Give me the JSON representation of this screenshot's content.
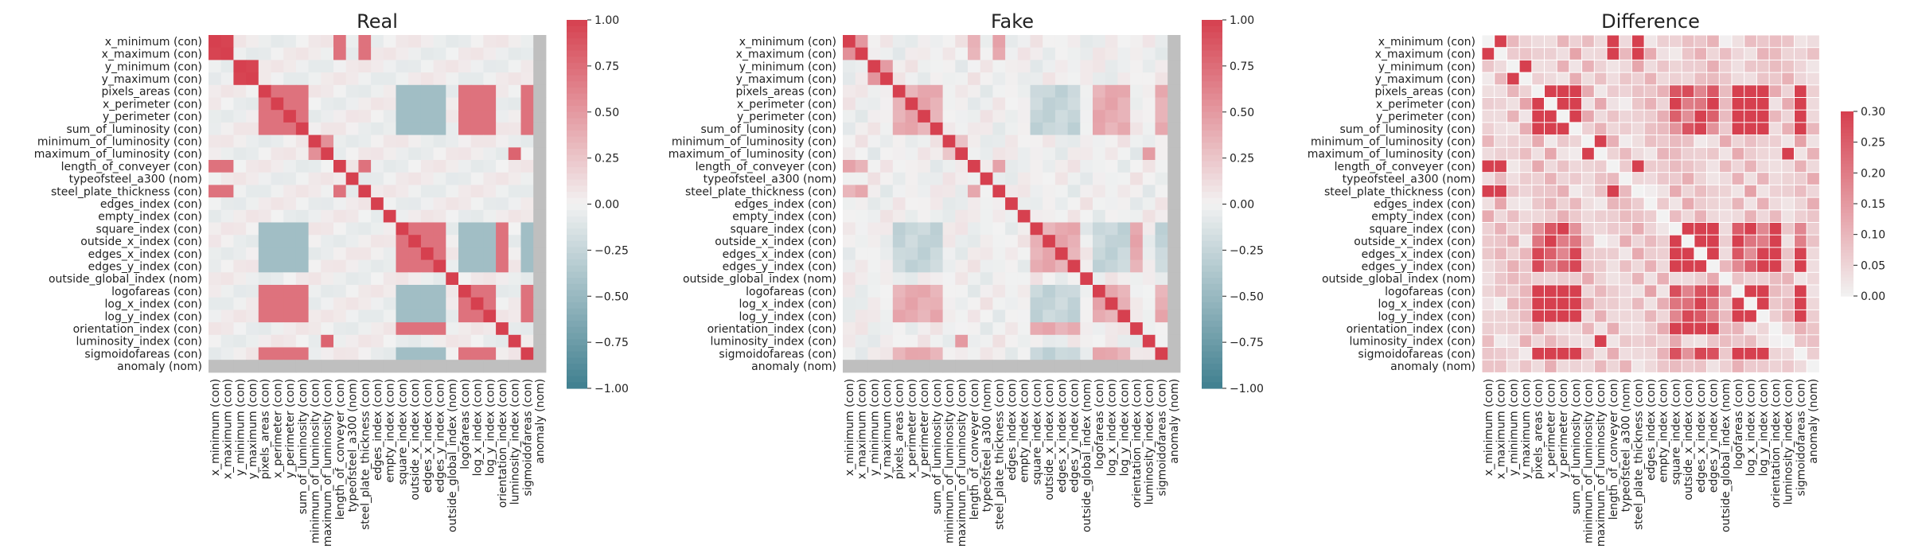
{
  "chart_data": [
    {
      "type": "heatmap",
      "title": "Real",
      "variables": [
        "x_minimum (con)",
        "x_maximum (con)",
        "y_minimum (con)",
        "y_maximum (con)",
        "pixels_areas (con)",
        "x_perimeter (con)",
        "y_perimeter (con)",
        "sum_of_luminosity (con)",
        "minimum_of_luminosity (con)",
        "maximum_of_luminosity (con)",
        "length_of_conveyer (con)",
        "typeofsteel_a300 (nom)",
        "steel_plate_thickness (con)",
        "edges_index (con)",
        "empty_index (con)",
        "square_index (con)",
        "outside_x_index (con)",
        "edges_x_index (con)",
        "edges_y_index (con)",
        "outside_global_index (nom)",
        "logofareas (con)",
        "log_x_index (con)",
        "log_y_index (con)",
        "orientation_index (con)",
        "luminosity_index (con)",
        "sigmoidofareas (con)",
        "anomaly (nom)"
      ],
      "vmin": -1,
      "vmax": 1,
      "colorbar_ticks": [
        "1.00",
        "0.75",
        "0.50",
        "0.25",
        "0.00",
        "−0.25",
        "−0.50",
        "−0.75",
        "−1.00"
      ],
      "undefined_variable": "anomaly (nom)"
    },
    {
      "type": "heatmap",
      "title": "Fake",
      "variables": [
        "x_minimum (con)",
        "x_maximum (con)",
        "y_minimum (con)",
        "y_maximum (con)",
        "pixels_areas (con)",
        "x_perimeter (con)",
        "y_perimeter (con)",
        "sum_of_luminosity (con)",
        "minimum_of_luminosity (con)",
        "maximum_of_luminosity (con)",
        "length_of_conveyer (con)",
        "typeofsteel_a300 (nom)",
        "steel_plate_thickness (con)",
        "edges_index (con)",
        "empty_index (con)",
        "square_index (con)",
        "outside_x_index (con)",
        "edges_x_index (con)",
        "edges_y_index (con)",
        "outside_global_index (nom)",
        "logofareas (con)",
        "log_x_index (con)",
        "log_y_index (con)",
        "orientation_index (con)",
        "luminosity_index (con)",
        "sigmoidofareas (con)",
        "anomaly (nom)"
      ],
      "vmin": -1,
      "vmax": 1,
      "colorbar_ticks": [
        "1.00",
        "0.75",
        "0.50",
        "0.25",
        "0.00",
        "−0.25",
        "−0.50",
        "−0.75",
        "−1.00"
      ],
      "undefined_variable": "anomaly (nom)"
    },
    {
      "type": "heatmap",
      "title": "Difference",
      "variables": [
        "x_minimum (con)",
        "x_maximum (con)",
        "y_minimum (con)",
        "y_maximum (con)",
        "pixels_areas (con)",
        "x_perimeter (con)",
        "y_perimeter (con)",
        "sum_of_luminosity (con)",
        "minimum_of_luminosity (con)",
        "maximum_of_luminosity (con)",
        "length_of_conveyer (con)",
        "typeofsteel_a300 (nom)",
        "steel_plate_thickness (con)",
        "edges_index (con)",
        "empty_index (con)",
        "square_index (con)",
        "outside_x_index (con)",
        "edges_x_index (con)",
        "edges_y_index (con)",
        "outside_global_index (nom)",
        "logofareas (con)",
        "log_x_index (con)",
        "log_y_index (con)",
        "orientation_index (con)",
        "luminosity_index (con)",
        "sigmoidofareas (con)",
        "anomaly (nom)"
      ],
      "vmin": 0,
      "vmax": 0.3,
      "colorbar_ticks": [
        "0.30",
        "0.25",
        "0.20",
        "0.15",
        "0.10",
        "0.05",
        "0.00"
      ],
      "cell_grid": true
    }
  ],
  "colors": {
    "positive": "#d6404f",
    "neutral": "#f2f2f2",
    "negative": "#3f7f8f",
    "difference_low": "#f2f2f2",
    "difference_high": "#d6404f",
    "nan_fill": "#bfbfbf"
  }
}
